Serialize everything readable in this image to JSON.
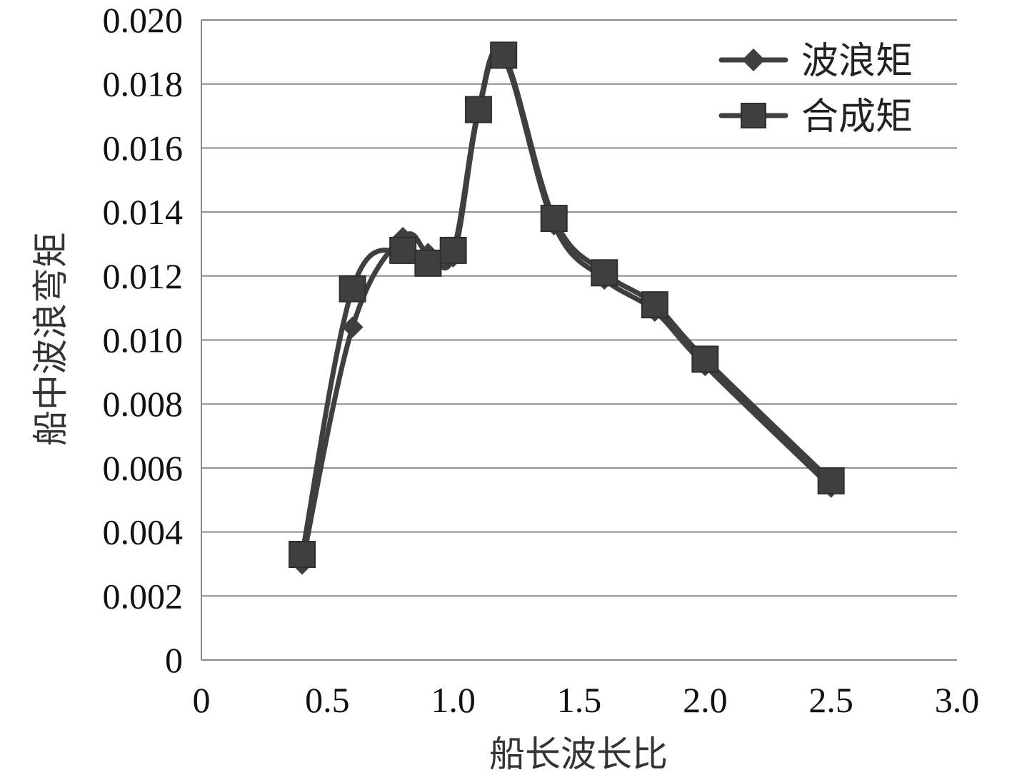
{
  "chart_data": {
    "type": "line",
    "title": "",
    "xlabel": "船长波长比",
    "ylabel": "船中波浪弯矩",
    "xlim": [
      0,
      3.0
    ],
    "ylim": [
      0,
      0.02
    ],
    "x_ticks": [
      "0",
      "0.5",
      "1.0",
      "1.5",
      "2.0",
      "2.5",
      "3.0"
    ],
    "y_ticks": [
      "0",
      "0.002",
      "0.004",
      "0.006",
      "0.008",
      "0.010",
      "0.012",
      "0.014",
      "0.016",
      "0.018",
      "0.020"
    ],
    "grid": "horizontal",
    "legend_position": "top-right",
    "line_color": "#3f3f3f",
    "series": [
      {
        "name": "波浪矩",
        "marker": "diamond",
        "points": [
          {
            "x": 0.4,
            "y": 0.003
          },
          {
            "x": 0.6,
            "y": 0.0104
          },
          {
            "x": 0.8,
            "y": 0.0132
          },
          {
            "x": 0.9,
            "y": 0.0127
          },
          {
            "x": 1.0,
            "y": 0.0126
          },
          {
            "x": 1.1,
            "y": 0.0171
          },
          {
            "x": 1.2,
            "y": 0.0188
          },
          {
            "x": 1.4,
            "y": 0.0136
          },
          {
            "x": 1.6,
            "y": 0.0119
          },
          {
            "x": 1.8,
            "y": 0.0109
          },
          {
            "x": 2.0,
            "y": 0.0092
          },
          {
            "x": 2.5,
            "y": 0.0054
          }
        ]
      },
      {
        "name": "合成矩",
        "marker": "square",
        "points": [
          {
            "x": 0.4,
            "y": 0.0033
          },
          {
            "x": 0.6,
            "y": 0.0116
          },
          {
            "x": 0.8,
            "y": 0.0128
          },
          {
            "x": 0.9,
            "y": 0.0124
          },
          {
            "x": 1.0,
            "y": 0.0128
          },
          {
            "x": 1.1,
            "y": 0.0172
          },
          {
            "x": 1.2,
            "y": 0.0189
          },
          {
            "x": 1.4,
            "y": 0.0138
          },
          {
            "x": 1.6,
            "y": 0.0121
          },
          {
            "x": 1.8,
            "y": 0.0111
          },
          {
            "x": 2.0,
            "y": 0.0094
          },
          {
            "x": 2.5,
            "y": 0.0056
          }
        ]
      }
    ]
  }
}
